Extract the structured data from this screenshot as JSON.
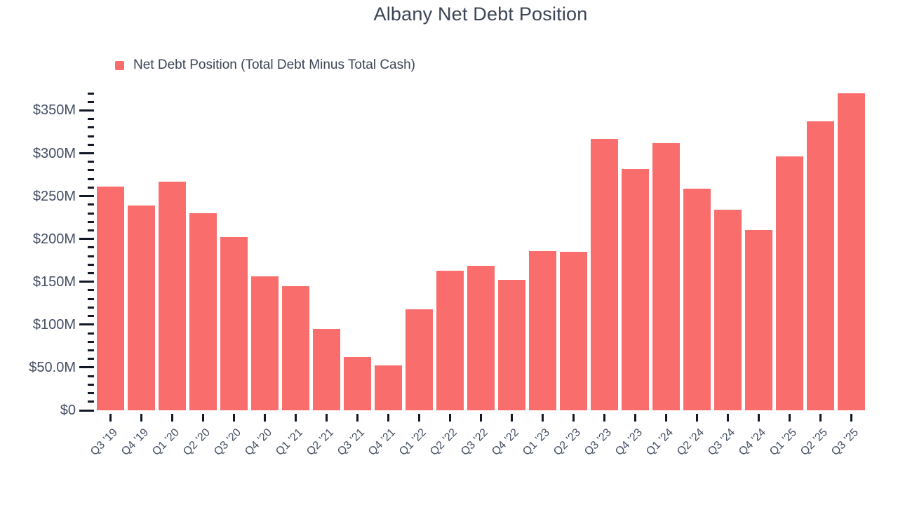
{
  "chart_data": {
    "type": "bar",
    "title": "Albany Net Debt Position",
    "legend": [
      {
        "label": "Net Debt Position (Total Debt Minus Total Cash)",
        "color": "#FA6D6D"
      }
    ],
    "legend_position": "top-left",
    "unit": "$M",
    "categories": [
      "Q3 '19",
      "Q4 '19",
      "Q1 '20",
      "Q2 '20",
      "Q3 '20",
      "Q4 '20",
      "Q1 '21",
      "Q2 '21",
      "Q3 '21",
      "Q4 '21",
      "Q1 '22",
      "Q2 '22",
      "Q3 '22",
      "Q4 '22",
      "Q1 '23",
      "Q2 '23",
      "Q3 '23",
      "Q4 '23",
      "Q1 '24",
      "Q2 '24",
      "Q3 '24",
      "Q4 '24",
      "Q1 '25",
      "Q2 '25",
      "Q3 '25"
    ],
    "values": [
      261,
      239,
      267,
      230,
      202,
      156,
      145,
      95,
      62,
      52,
      118,
      163,
      169,
      152,
      186,
      185,
      317,
      282,
      312,
      259,
      234,
      210,
      296,
      337,
      370
    ],
    "ylim": [
      0,
      370
    ],
    "y_major_ticks": [
      {
        "value": 0,
        "label": "$0"
      },
      {
        "value": 50,
        "label": "$50.0M"
      },
      {
        "value": 100,
        "label": "$100M"
      },
      {
        "value": 150,
        "label": "$150M"
      },
      {
        "value": 200,
        "label": "$200M"
      },
      {
        "value": 250,
        "label": "$250M"
      },
      {
        "value": 300,
        "label": "$300M"
      },
      {
        "value": 350,
        "label": "$350M"
      }
    ],
    "y_minor_step": 10,
    "y_major_step": 50,
    "grid": false,
    "colors": {
      "bar": "#FA6D6D",
      "title_text": "#3A4454",
      "axis_text": "#434E63",
      "tick_mark": "#111827",
      "background": "#FFFFFF"
    }
  }
}
